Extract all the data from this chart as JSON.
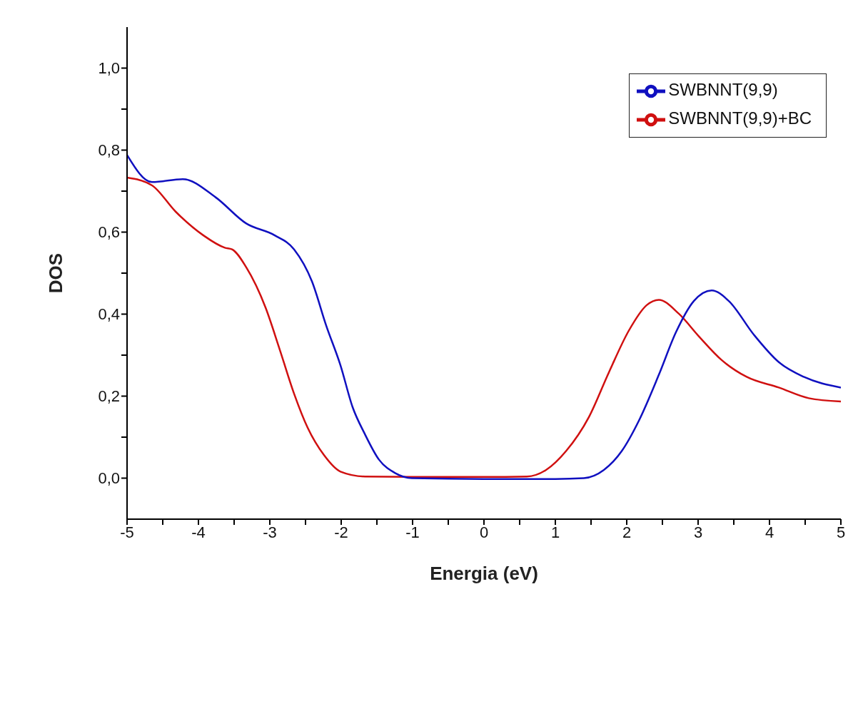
{
  "chart_data": {
    "type": "line",
    "xlabel": "Energia (eV)",
    "ylabel": "DOS",
    "xlim": [
      -5,
      5
    ],
    "ylim": [
      -0.1,
      1.1
    ],
    "xticks": [
      -5,
      {
        "value": -4.5,
        "label": null
      },
      -4,
      {
        "value": -3.5,
        "label": null
      },
      -3,
      {
        "value": -2.5,
        "label": null
      },
      -2,
      {
        "value": -1.5,
        "label": null
      },
      -1,
      {
        "value": -0.5,
        "label": null
      },
      0,
      {
        "value": 0.5,
        "label": null
      },
      1,
      {
        "value": 1.5,
        "label": null
      },
      2,
      {
        "value": 2.5,
        "label": null
      },
      3,
      {
        "value": 3.5,
        "label": null
      },
      4,
      {
        "value": 4.5,
        "label": null
      },
      5
    ],
    "yticks": [
      {
        "value": 0,
        "label": "0,0"
      },
      {
        "value": 0.1,
        "label": null
      },
      {
        "value": 0.2,
        "label": "0,2"
      },
      {
        "value": 0.3,
        "label": null
      },
      {
        "value": 0.4,
        "label": "0,4"
      },
      {
        "value": 0.5,
        "label": null
      },
      {
        "value": 0.6,
        "label": "0,6"
      },
      {
        "value": 0.7,
        "label": null
      },
      {
        "value": 0.8,
        "label": "0,8"
      },
      {
        "value": 0.9,
        "label": null
      },
      {
        "value": 1.0,
        "label": "1,0"
      }
    ],
    "grid": false,
    "legend": "top right",
    "marker": "none",
    "line_style": "solid",
    "series": [
      {
        "name": "SWBNNT(9,9)+BC",
        "color": "#d01010",
        "x": [
          -5,
          -4.65,
          -4.32,
          -3.93,
          -3.63,
          -3.53,
          -3.33,
          -3.06,
          -2.86,
          -2.66,
          -2.47,
          -2.24,
          -2.01,
          -1.67,
          -1,
          0,
          0.6,
          0.87,
          1.15,
          1.47,
          1.75,
          2.03,
          2.28,
          2.45,
          2.73,
          3.01,
          3.33,
          3.68,
          4.13,
          4.55,
          5
        ],
        "values": [
          0.733,
          0.714,
          0.65,
          0.592,
          0.562,
          0.558,
          0.514,
          0.416,
          0.313,
          0.206,
          0.123,
          0.056,
          0.016,
          0.004,
          0.003,
          0.003,
          0.004,
          0.02,
          0.066,
          0.149,
          0.258,
          0.36,
          0.422,
          0.435,
          0.401,
          0.346,
          0.288,
          0.247,
          0.221,
          0.195,
          0.187
        ]
      },
      {
        "name": "SWBNNT(9,9)",
        "color": "#1010c0",
        "x": [
          -5,
          -4.65,
          -4.22,
          -3.76,
          -3.33,
          -2.93,
          -2.66,
          -2.41,
          -2.21,
          -2.01,
          -1.84,
          -1.67,
          -1.47,
          -1.24,
          -1.01,
          0,
          1.0,
          1.4,
          1.68,
          1.93,
          2.17,
          2.45,
          2.69,
          2.94,
          3.19,
          3.43,
          3.78,
          4.13,
          4.48,
          5
        ],
        "values": [
          0.788,
          0.722,
          0.729,
          0.685,
          0.621,
          0.592,
          0.558,
          0.48,
          0.372,
          0.275,
          0.173,
          0.108,
          0.045,
          0.012,
          0.0,
          -0.002,
          -0.002,
          0.0,
          0.02,
          0.066,
          0.14,
          0.252,
          0.356,
          0.432,
          0.458,
          0.432,
          0.35,
          0.283,
          0.247,
          0.221
        ]
      }
    ]
  }
}
